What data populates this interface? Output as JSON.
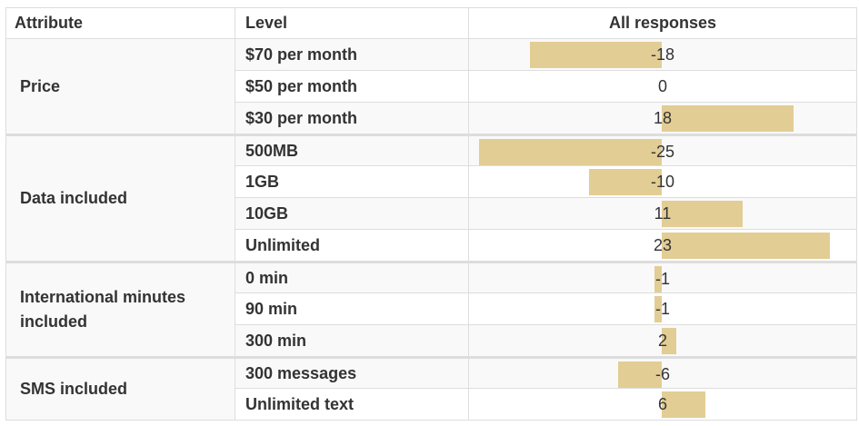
{
  "chart_data": {
    "type": "table",
    "columns": [
      "Attribute",
      "Level",
      "All responses"
    ],
    "axis_range": [
      -25,
      25
    ],
    "bar_color": "#e2cd95",
    "groups": [
      {
        "attribute": "Price",
        "rows": [
          {
            "level": "$70 per month",
            "value": -18
          },
          {
            "level": "$50 per month",
            "value": 0
          },
          {
            "level": "$30 per month",
            "value": 18
          }
        ]
      },
      {
        "attribute": "Data included",
        "rows": [
          {
            "level": "500MB",
            "value": -25
          },
          {
            "level": "1GB",
            "value": -10
          },
          {
            "level": "10GB",
            "value": 11
          },
          {
            "level": "Unlimited",
            "value": 23
          }
        ]
      },
      {
        "attribute": "International minutes included",
        "rows": [
          {
            "level": "0 min",
            "value": -1
          },
          {
            "level": "90 min",
            "value": -1
          },
          {
            "level": "300 min",
            "value": 2
          }
        ]
      },
      {
        "attribute": "SMS included",
        "rows": [
          {
            "level": "300 messages",
            "value": -6
          },
          {
            "level": "Unlimited text",
            "value": 6
          }
        ]
      }
    ]
  }
}
